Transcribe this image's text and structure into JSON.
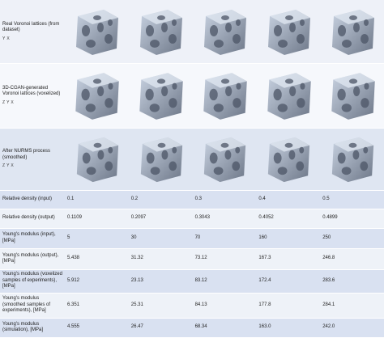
{
  "image_rows": [
    {
      "label": "Real Voronoi lattices (from dataset)",
      "axes": [
        "Y",
        "X"
      ]
    },
    {
      "label": "3D-CGAN-generated Voronoi lattices (voxelized)",
      "axes": [
        "Z",
        "Y",
        "X"
      ]
    },
    {
      "label": "After NURMS process (smoothed)",
      "axes": [
        "Z",
        "Y",
        "X"
      ]
    }
  ],
  "data_rows": [
    {
      "label": "Relative density (input)",
      "values": [
        "0.1",
        "0.2",
        "0.3",
        "0.4",
        "0.5"
      ]
    },
    {
      "label": "Relative density (output)",
      "values": [
        "0.1109",
        "0.2097",
        "0.3043",
        "0.4052",
        "0.4899"
      ]
    },
    {
      "label": "Young's modulus (input), [MPa]",
      "values": [
        "5",
        "30",
        "70",
        "160",
        "250"
      ]
    },
    {
      "label": "Young's modulus (output), [MPa]",
      "values": [
        "5.438",
        "31.32",
        "73.12",
        "167.3",
        "246.8"
      ]
    },
    {
      "label": "Young's modulus (voxelized samples of experiments), [MPa]",
      "values": [
        "5.912",
        "23.13",
        "83.12",
        "172.4",
        "283.6"
      ]
    },
    {
      "label": "Young's modulus (smoothed samples of experiments), [MPa]",
      "values": [
        "6.351",
        "25.31",
        "84.13",
        "177.8",
        "284.1"
      ]
    },
    {
      "label": "Young's modulus (simulation), [MPa]",
      "values": [
        "4.555",
        "26.47",
        "68.34",
        "163.0",
        "242.0"
      ]
    }
  ]
}
